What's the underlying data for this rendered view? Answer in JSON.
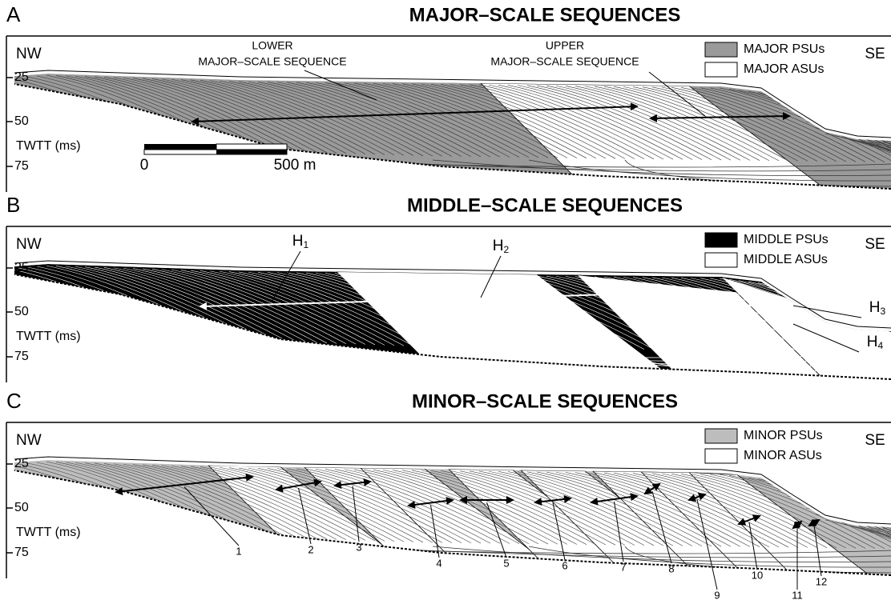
{
  "panels": [
    {
      "letter": "A",
      "title": "MAJOR–SCALE SEQUENCES",
      "left": "NW",
      "right": "SE",
      "axis_label": "TWTT (ms)",
      "ticks": [
        25,
        50,
        75
      ],
      "legend": [
        {
          "label": "MAJOR PSUs"
        },
        {
          "label": "MAJOR ASUs"
        }
      ],
      "annotations": [
        {
          "lines": [
            "LOWER",
            "MAJOR–SCALE SEQUENCE"
          ]
        },
        {
          "lines": [
            "UPPER",
            "MAJOR–SCALE SEQUENCE"
          ]
        }
      ],
      "scale_bar": [
        "0",
        "500 m"
      ]
    },
    {
      "letter": "B",
      "title": "MIDDLE–SCALE SEQUENCES",
      "left": "NW",
      "right": "SE",
      "axis_label": "TWTT (ms)",
      "ticks": [
        25,
        50,
        75
      ],
      "legend": [
        {
          "label": "MIDDLE PSUs"
        },
        {
          "label": "MIDDLE ASUs"
        }
      ],
      "horizons": [
        {
          "base": "H",
          "sub": "1"
        },
        {
          "base": "H",
          "sub": "2"
        },
        {
          "base": "H",
          "sub": "3"
        },
        {
          "base": "H",
          "sub": "4"
        }
      ]
    },
    {
      "letter": "C",
      "title": "MINOR–SCALE SEQUENCES",
      "left": "NW",
      "right": "SE",
      "axis_label": "TWTT (ms)",
      "ticks": [
        25,
        50,
        75
      ],
      "legend": [
        {
          "label": "MINOR PSUs"
        },
        {
          "label": "MINOR ASUs"
        }
      ],
      "sequence_numbers": [
        "1",
        "2",
        "3",
        "4",
        "5",
        "6",
        "7",
        "8",
        "9",
        "10",
        "11",
        "12"
      ]
    }
  ]
}
